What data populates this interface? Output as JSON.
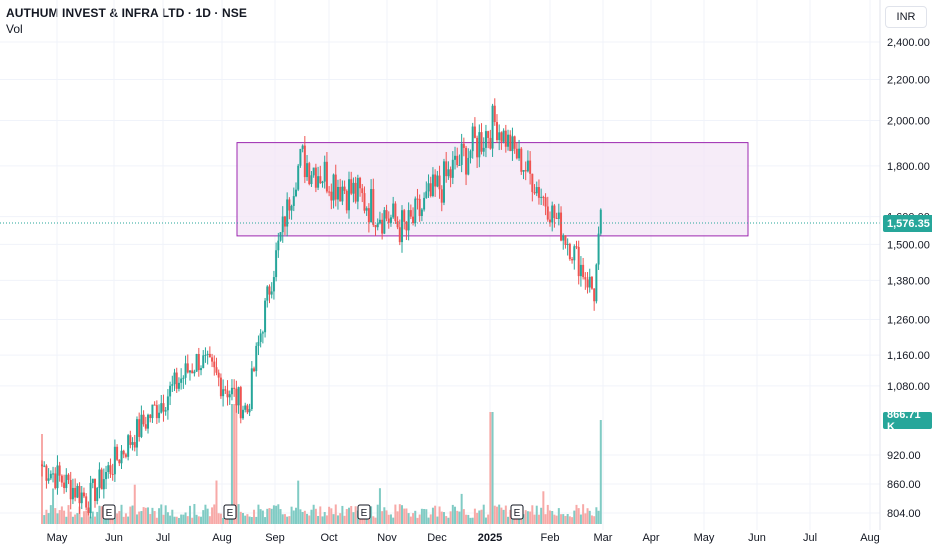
{
  "header": {
    "symbol_line": "AUTHUM INVEST & INFRA LTD · 1D · NSE",
    "volume_label": "Vol"
  },
  "currency_button": "INR",
  "price_tag": "1,576.35",
  "volume_tag": "866.71 K",
  "earnings_marker": "E",
  "colors": {
    "up": "#26a69a",
    "down": "#ef5350",
    "up_volume": "#80cbc4",
    "down_volume": "#f7a9a7",
    "rectangle_fill": "#f3e5f5",
    "rectangle_border": "#9c27b0",
    "price_line": "#26a69a",
    "grid": "#f0f3fa"
  },
  "chart_data": {
    "type": "candlestick",
    "symbol": "AUTHUM INVEST & INFRA LTD",
    "interval": "1D",
    "exchange": "NSE",
    "currency": "INR",
    "y_axis_ticks": [
      804,
      860,
      920,
      1080,
      1160,
      1260,
      1380,
      1500,
      1600,
      1800,
      2000,
      2200,
      2400
    ],
    "y_axis_labels": [
      "804.00",
      "860.00",
      "920.00",
      "1,080.00",
      "1,160.00",
      "1,260.00",
      "1,380.00",
      "1,500.00",
      "1,600.00",
      "1,800.00",
      "2,000.00",
      "2,200.00",
      "2,400.00"
    ],
    "ylim": [
      780,
      2450
    ],
    "y_scale": "log",
    "x_axis_labels": [
      "May",
      "Jun",
      "Jul",
      "Aug",
      "Sep",
      "Oct",
      "Nov",
      "Dec",
      "2025",
      "Feb",
      "Mar",
      "Apr",
      "May",
      "Jun",
      "Jul",
      "Aug"
    ],
    "x_axis_bold": [
      "2025"
    ],
    "last_price": 1576.35,
    "last_volume": "866.71 K",
    "earnings_markers_near": [
      "Jun",
      "Aug",
      "Oct",
      "Jan"
    ],
    "rectangle_zone": {
      "start": "Aug",
      "end": "May",
      "price_low": 1530,
      "price_high": 1900
    },
    "ohlc_segments": [
      {
        "from": 900,
        "to": 830,
        "period": "May",
        "note": "decline"
      },
      {
        "from": 830,
        "to": 1150,
        "period": "Jun-Jul",
        "note": "rally"
      },
      {
        "from": 1150,
        "to": 1020,
        "period": "Jul-Aug",
        "note": "pullback"
      },
      {
        "from": 1020,
        "to": 1830,
        "period": "Aug-Sep",
        "note": "breakout"
      },
      {
        "from": 1830,
        "to": 1550,
        "period": "Sep-Nov",
        "note": "range"
      },
      {
        "from": 1550,
        "to": 1990,
        "period": "Nov-Jan",
        "note": "rally"
      },
      {
        "from": 1990,
        "to": 1340,
        "period": "Jan-Mar",
        "note": "decline"
      },
      {
        "from": 1340,
        "to": 1576.35,
        "period": "Mar",
        "note": "rebound"
      }
    ]
  }
}
